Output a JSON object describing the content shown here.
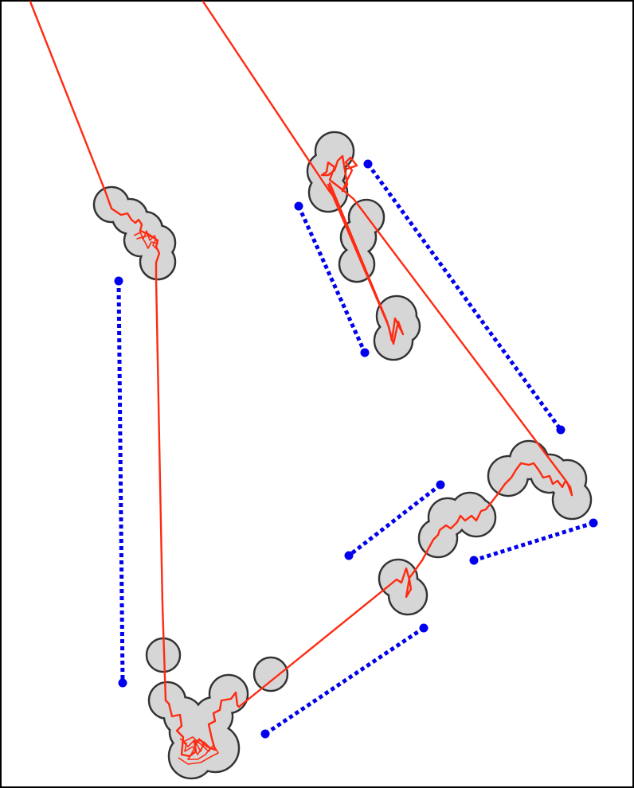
{
  "colors": {
    "background": "#ffffff",
    "frame": "#000000",
    "blob_fill": "#d6d6d6",
    "blob_stroke": "#333333",
    "track": "#ff2a12",
    "connector": "#0000ee"
  },
  "diagram": {
    "elements": [
      "gray-blob-clusters",
      "red-trajectory",
      "blue-dotted-connectors"
    ]
  }
}
